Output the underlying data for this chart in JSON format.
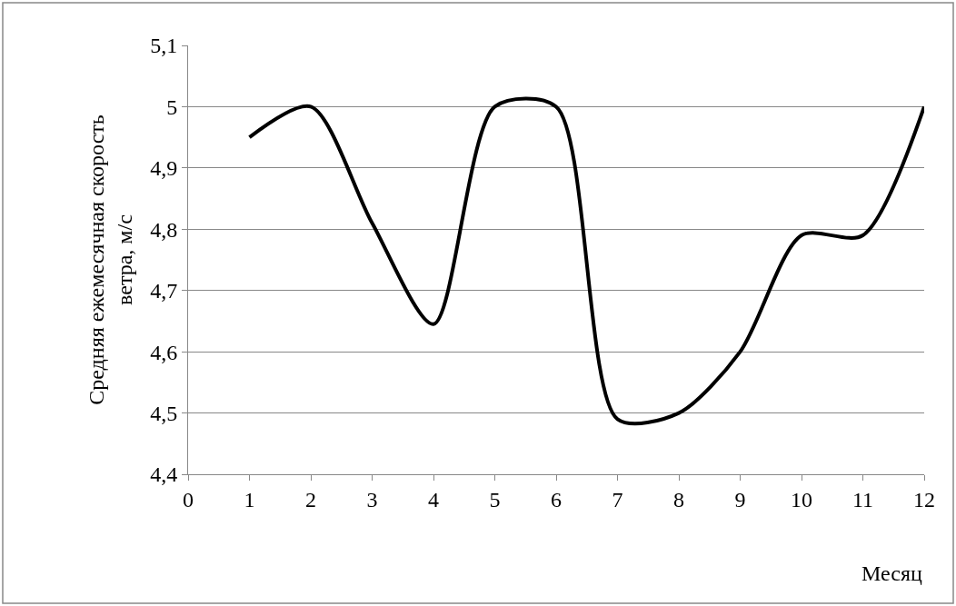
{
  "chart_data": {
    "type": "line",
    "xlabel": "Месяц",
    "ylabel": "Средняя ежемесячная скорость ветра, м/с",
    "x": [
      1,
      2,
      3,
      4,
      5,
      6,
      7,
      8,
      9,
      10,
      11,
      12
    ],
    "series": [
      {
        "color": "#000000",
        "values": [
          4.95,
          5.0,
          4.81,
          4.645,
          5.0,
          5.0,
          4.49,
          4.5,
          4.6,
          4.79,
          4.79,
          5.0
        ]
      }
    ],
    "xlim": [
      0,
      12
    ],
    "xticks": [
      0,
      1,
      2,
      3,
      4,
      5,
      6,
      7,
      8,
      9,
      10,
      11,
      12
    ],
    "ylim": [
      4.4,
      5.1
    ],
    "yticks": [
      {
        "value": 4.4,
        "label": "4,4"
      },
      {
        "value": 4.5,
        "label": "4,5"
      },
      {
        "value": 4.6,
        "label": "4,6"
      },
      {
        "value": 4.7,
        "label": "4,7"
      },
      {
        "value": 4.8,
        "label": "4,8"
      },
      {
        "value": 4.9,
        "label": "4,9"
      },
      {
        "value": 5.0,
        "label": "5"
      },
      {
        "value": 5.1,
        "label": "5,1"
      }
    ],
    "grid": "y",
    "marker": "none",
    "line_style": "solid"
  }
}
